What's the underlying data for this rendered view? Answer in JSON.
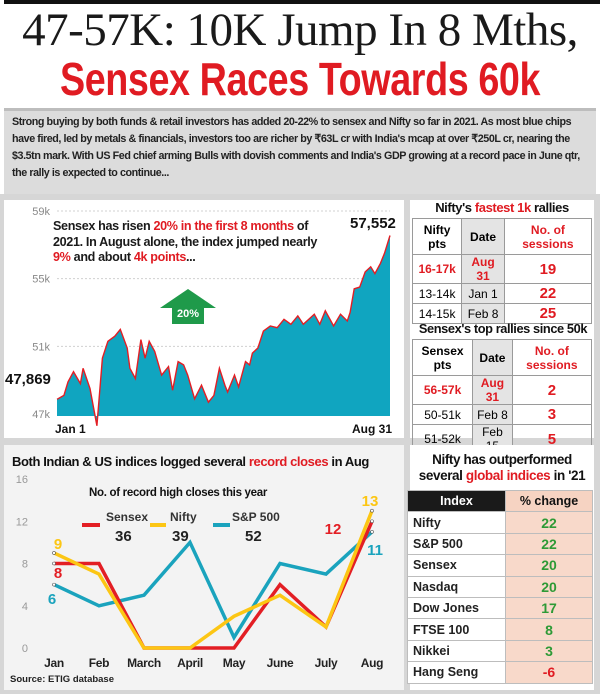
{
  "header": {
    "title_line1": "47-57K: 10K Jump In 8 Mths,",
    "title_line2": "Sensex Races Towards 60k",
    "intro": "Strong buying by both funds & retail investors has added 20-22% to sensex and Nifty so far in 2021. As most blue chips have fired, led by metals & financials, investors too are richer by ₹63L cr with India's mcap at over ₹250L cr, nearing the $3.5tn mark. With US Fed chief arming Bulls with dovish comments and India's GDP growing at a record pace in June qtr, the rally is expected to continue..."
  },
  "sensex_panel": {
    "note": [
      "Sensex has risen ",
      "20% in the first 8 months",
      " of 2021. In August alone, the index jumped nearly ",
      "9%",
      " and about ",
      "4k points",
      "..."
    ],
    "arrow_label": "20%",
    "start_label": "47,869",
    "end_label": "57,552",
    "x_start_label": "Jan 1",
    "x_end_label": "Aug 31"
  },
  "nifty_rallies": {
    "title": [
      "Nifty's ",
      "fastest 1k",
      " rallies"
    ],
    "headers": [
      "Nifty pts",
      "Date",
      "No. of sessions"
    ],
    "rows": [
      {
        "pts": "16-17k",
        "date": "Aug 31",
        "sessions": "19"
      },
      {
        "pts": "13-14k",
        "date": "Jan 1",
        "sessions": "22"
      },
      {
        "pts": "14-15k",
        "date": "Feb 8",
        "sessions": "25"
      }
    ]
  },
  "sensex_rallies": {
    "title": "Sensex's top rallies since 50k",
    "headers": [
      "Sensex pts",
      "Date",
      "No. of sessions"
    ],
    "rows": [
      {
        "pts": "56-57k",
        "date": "Aug 31",
        "sessions": "2"
      },
      {
        "pts": "50-51k",
        "date": "Feb 8",
        "sessions": "3"
      },
      {
        "pts": "51-52k",
        "date": "Feb 15",
        "sessions": "5"
      }
    ]
  },
  "global_table": {
    "title_line1": "Nifty has outperformed",
    "title_line2": [
      "several ",
      "global indices",
      " in '21"
    ],
    "headers": [
      "Index",
      "% change"
    ],
    "rows": [
      {
        "index": "Nifty",
        "change": "22"
      },
      {
        "index": "S&P 500",
        "change": "22"
      },
      {
        "index": "Sensex",
        "change": "20"
      },
      {
        "index": "Nasdaq",
        "change": "20"
      },
      {
        "index": "Dow Jones",
        "change": "17"
      },
      {
        "index": "FTSE 100",
        "change": "8"
      },
      {
        "index": "Nikkei",
        "change": "3"
      },
      {
        "index": "Hang Seng",
        "change": "-6"
      }
    ],
    "positive_color": "#2e9a36",
    "negative_color": "#e01b22"
  },
  "source": "Source: ETIG database",
  "chart_data": [
    {
      "type": "area",
      "series_unit": "Sensex points",
      "ylim": [
        47000,
        59000
      ],
      "yticks": [
        "59k",
        "55k",
        "51k",
        "47k"
      ],
      "grid": true,
      "fill_color": "#10a5c0",
      "line_color": "#e31e24",
      "x": [
        "01-01",
        "01-06",
        "01-09",
        "01-13",
        "01-18",
        "01-20",
        "01-25",
        "01-30",
        "02-03",
        "02-07",
        "02-12",
        "02-16",
        "02-21",
        "02-23",
        "02-27",
        "03-03",
        "03-06",
        "03-09",
        "03-13",
        "03-18",
        "03-23",
        "03-26",
        "03-30",
        "04-03",
        "04-06",
        "04-11",
        "04-16",
        "04-21",
        "04-25",
        "04-29",
        "05-03",
        "05-05",
        "05-10",
        "05-13",
        "05-18",
        "05-21",
        "05-23",
        "05-27",
        "05-31",
        "06-05",
        "06-10",
        "06-15",
        "06-20",
        "06-25",
        "06-29",
        "07-07",
        "07-11",
        "07-15",
        "07-21",
        "07-26",
        "07-31",
        "08-02",
        "08-05",
        "08-09",
        "08-13",
        "08-17",
        "08-20",
        "08-24",
        "08-27",
        "08-31"
      ],
      "y": [
        47869,
        48100,
        48900,
        49500,
        48800,
        49700,
        48500,
        46300,
        50300,
        51300,
        51600,
        52000,
        50900,
        49700,
        49100,
        51400,
        50300,
        51300,
        50700,
        49300,
        49800,
        48400,
        50100,
        49900,
        49300,
        47900,
        48700,
        47700,
        48100,
        49700,
        48700,
        48300,
        49300,
        48600,
        50100,
        49900,
        50600,
        50900,
        51900,
        52200,
        52100,
        52600,
        52300,
        52800,
        52300,
        52900,
        52300,
        53100,
        52200,
        52900,
        52500,
        53000,
        54400,
        54500,
        55400,
        55700,
        55300,
        55900,
        56500,
        57552
      ]
    },
    {
      "type": "line",
      "title": [
        "Both Indian & US indices logged several ",
        "record closes",
        " in Aug"
      ],
      "subtitle": "No. of record high closes this year",
      "categories": [
        "Jan",
        "Feb",
        "March",
        "April",
        "May",
        "June",
        "July",
        "Aug"
      ],
      "ylim": [
        0,
        16
      ],
      "yticks": [
        16,
        12,
        8,
        4,
        0
      ],
      "grid": false,
      "legend_position": "top",
      "series": [
        {
          "name": "Sensex",
          "total": "36",
          "color": "#e31e24",
          "values": [
            8,
            8,
            0,
            0,
            0,
            6,
            2,
            12
          ]
        },
        {
          "name": "Nifty",
          "total": "39",
          "color": "#fcc614",
          "values": [
            9,
            7,
            0,
            0,
            3,
            5,
            2,
            13
          ]
        },
        {
          "name": "S&P 500",
          "total": "52",
          "color": "#1aa3bd",
          "values": [
            6,
            4,
            5,
            10,
            1,
            8,
            7,
            11
          ]
        }
      ],
      "data_labels": [
        {
          "series": "Nifty",
          "month": "Jan",
          "text": "9"
        },
        {
          "series": "Sensex",
          "month": "Jan",
          "text": "8"
        },
        {
          "series": "S&P 500",
          "month": "Jan",
          "text": "6"
        },
        {
          "series": "Sensex",
          "month": "Aug",
          "text": "12"
        },
        {
          "series": "Nifty",
          "month": "Aug",
          "text": "13"
        },
        {
          "series": "S&P 500",
          "month": "Aug",
          "text": "11"
        }
      ]
    }
  ]
}
